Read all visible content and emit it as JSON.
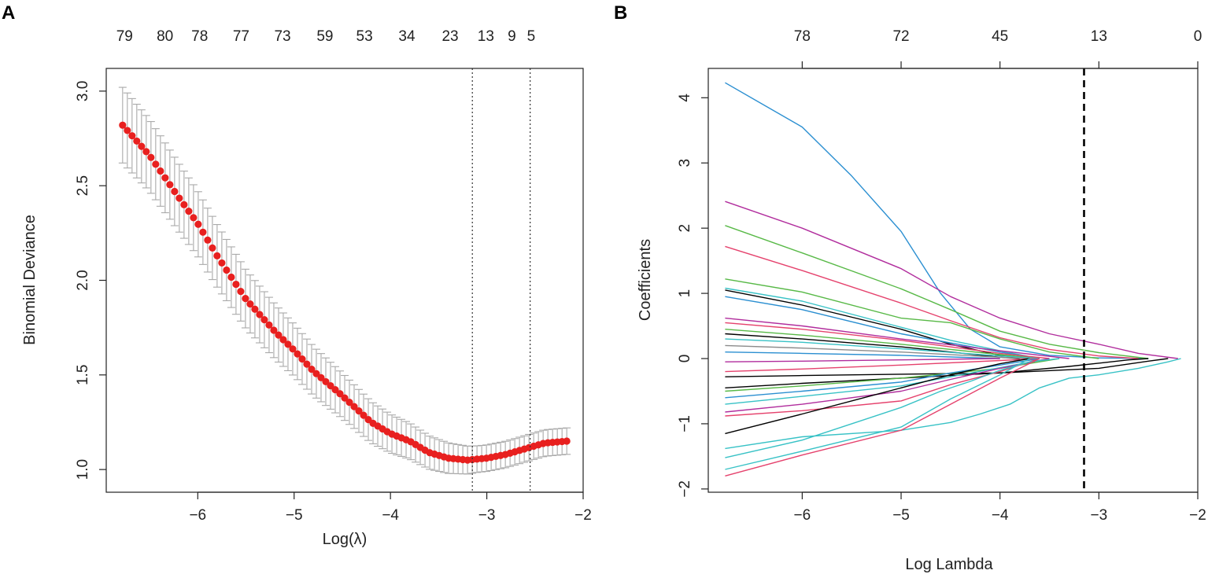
{
  "panels": {
    "left_letter": "A",
    "right_letter": "B"
  },
  "chart_data": [
    {
      "type": "scatter",
      "panel": "A",
      "title": "",
      "xlabel": "Log(λ)",
      "ylabel": "Binomial Deviance",
      "xlim": [
        -6.95,
        -2.0
      ],
      "ylim": [
        0.88,
        3.12
      ],
      "x_ticks": [
        -6,
        -5,
        -4,
        -3,
        -2
      ],
      "x_tick_labels": [
        "−6",
        "−5",
        "−4",
        "−3",
        "−2"
      ],
      "y_ticks": [
        1.0,
        1.5,
        2.0,
        2.5,
        3.0
      ],
      "y_tick_labels": [
        "1.0",
        "1.5",
        "2.0",
        "2.5",
        "3.0"
      ],
      "top_axis_labels": [
        "79",
        "80",
        "78",
        "77",
        "73",
        "59",
        "53",
        "34",
        "23",
        "13",
        "9",
        "5"
      ],
      "top_axis_positions": [
        -6.76,
        -6.34,
        -5.98,
        -5.55,
        -5.12,
        -4.68,
        -4.27,
        -3.83,
        -3.38,
        -3.01,
        -2.74,
        -2.54
      ],
      "vlines": [
        -3.15,
        -2.55
      ],
      "mean_curve_knots": [
        [
          -6.78,
          2.82
        ],
        [
          -6.5,
          2.66
        ],
        [
          -6.2,
          2.44
        ],
        [
          -6.0,
          2.3
        ],
        [
          -5.8,
          2.13
        ],
        [
          -5.5,
          1.9
        ],
        [
          -5.2,
          1.73
        ],
        [
          -5.0,
          1.63
        ],
        [
          -4.8,
          1.52
        ],
        [
          -4.5,
          1.39
        ],
        [
          -4.2,
          1.25
        ],
        [
          -4.0,
          1.19
        ],
        [
          -3.8,
          1.15
        ],
        [
          -3.6,
          1.09
        ],
        [
          -3.4,
          1.06
        ],
        [
          -3.2,
          1.05
        ],
        [
          -3.0,
          1.06
        ],
        [
          -2.8,
          1.08
        ],
        [
          -2.6,
          1.11
        ],
        [
          -2.4,
          1.14
        ],
        [
          -2.17,
          1.15
        ]
      ],
      "error_half_width": [
        0.2,
        0.07
      ],
      "n_points": 95,
      "point_color": "#e8201f",
      "errorbar_color": "#a9a9a9"
    },
    {
      "type": "line",
      "panel": "B",
      "title": "",
      "xlabel": "Log Lambda",
      "ylabel": "Coefficients",
      "xlim": [
        -6.95,
        -2.0
      ],
      "ylim": [
        -2.05,
        4.45
      ],
      "x_ticks": [
        -6,
        -5,
        -4,
        -3,
        -2
      ],
      "x_tick_labels": [
        "−6",
        "−5",
        "−4",
        "−3",
        "−2"
      ],
      "y_ticks": [
        -2,
        -1,
        0,
        1,
        2,
        3,
        4
      ],
      "y_tick_labels": [
        "−2",
        "−1",
        "0",
        "1",
        "2",
        "3",
        "4"
      ],
      "top_axis_labels": [
        "78",
        "72",
        "45",
        "13",
        "0"
      ],
      "top_axis_positions": [
        -6,
        -5,
        -4,
        -3,
        -2
      ],
      "vline_dashed": -3.15,
      "series": [
        {
          "name": "s1",
          "color": "#2b8fd1",
          "points": [
            [
              -6.78,
              4.23
            ],
            [
              -6,
              3.55
            ],
            [
              -5.5,
              2.8
            ],
            [
              -5,
              1.95
            ],
            [
              -4.6,
              1.0
            ],
            [
              -4.3,
              0.45
            ],
            [
              -4.0,
              0.18
            ],
            [
              -3.5,
              0.05
            ],
            [
              -3.0,
              0.01
            ],
            [
              -2.5,
              0.0
            ]
          ]
        },
        {
          "name": "s2",
          "color": "#b12d9d",
          "points": [
            [
              -6.78,
              2.41
            ],
            [
              -6,
              2.0
            ],
            [
              -5,
              1.38
            ],
            [
              -4.5,
              0.95
            ],
            [
              -4,
              0.62
            ],
            [
              -3.5,
              0.38
            ],
            [
              -3,
              0.22
            ],
            [
              -2.6,
              0.08
            ],
            [
              -2.2,
              0.0
            ]
          ]
        },
        {
          "name": "s3",
          "color": "#58b947",
          "points": [
            [
              -6.78,
              2.04
            ],
            [
              -6,
              1.62
            ],
            [
              -5,
              1.07
            ],
            [
              -4.5,
              0.75
            ],
            [
              -4,
              0.42
            ],
            [
              -3.5,
              0.22
            ],
            [
              -3,
              0.09
            ],
            [
              -2.5,
              0.0
            ]
          ]
        },
        {
          "name": "s4",
          "color": "#e5426d",
          "points": [
            [
              -6.78,
              1.72
            ],
            [
              -6,
              1.35
            ],
            [
              -5,
              0.85
            ],
            [
              -4.5,
              0.58
            ],
            [
              -4,
              0.32
            ],
            [
              -3.5,
              0.14
            ],
            [
              -3,
              0.04
            ],
            [
              -2.6,
              0.0
            ]
          ]
        },
        {
          "name": "s5",
          "color": "#58b947",
          "points": [
            [
              -6.78,
              1.22
            ],
            [
              -6,
              1.02
            ],
            [
              -5,
              0.62
            ],
            [
              -4.5,
              0.55
            ],
            [
              -4,
              0.3
            ],
            [
              -3.5,
              0.1
            ],
            [
              -3,
              0.0
            ]
          ]
        },
        {
          "name": "s6",
          "color": "#38c2c6",
          "points": [
            [
              -6.78,
              1.08
            ],
            [
              -6,
              0.88
            ],
            [
              -5,
              0.48
            ],
            [
              -4.5,
              0.28
            ],
            [
              -4,
              0.12
            ],
            [
              -3.6,
              0.0
            ]
          ]
        },
        {
          "name": "s7",
          "color": "#000000",
          "points": [
            [
              -6.78,
              1.05
            ],
            [
              -6,
              0.82
            ],
            [
              -5,
              0.45
            ],
            [
              -4.5,
              0.22
            ],
            [
              -4,
              0.05
            ],
            [
              -3.7,
              0.0
            ]
          ]
        },
        {
          "name": "s8",
          "color": "#2b8fd1",
          "points": [
            [
              -6.78,
              0.95
            ],
            [
              -6,
              0.75
            ],
            [
              -5,
              0.38
            ],
            [
              -4,
              0.1
            ],
            [
              -3.6,
              0.0
            ]
          ]
        },
        {
          "name": "s9",
          "color": "#b12d9d",
          "points": [
            [
              -6.78,
              0.62
            ],
            [
              -6,
              0.5
            ],
            [
              -5,
              0.3
            ],
            [
              -4,
              0.12
            ],
            [
              -3.3,
              0.0
            ]
          ]
        },
        {
          "name": "s10",
          "color": "#e5426d",
          "points": [
            [
              -6.78,
              0.55
            ],
            [
              -6,
              0.45
            ],
            [
              -5,
              0.28
            ],
            [
              -4,
              0.08
            ],
            [
              -3.5,
              0.0
            ]
          ]
        },
        {
          "name": "s11",
          "color": "#58b947",
          "points": [
            [
              -6.78,
              0.45
            ],
            [
              -6,
              0.36
            ],
            [
              -5,
              0.22
            ],
            [
              -4,
              0.06
            ],
            [
              -3.6,
              0.0
            ]
          ]
        },
        {
          "name": "s12",
          "color": "#000000",
          "points": [
            [
              -6.78,
              0.38
            ],
            [
              -6,
              0.3
            ],
            [
              -5,
              0.18
            ],
            [
              -4,
              0.02
            ],
            [
              -3.8,
              0.0
            ]
          ]
        },
        {
          "name": "s13",
          "color": "#38c2c6",
          "points": [
            [
              -6.78,
              0.3
            ],
            [
              -6,
              0.25
            ],
            [
              -5,
              0.15
            ],
            [
              -4,
              0.04
            ],
            [
              -3.6,
              0.0
            ]
          ]
        },
        {
          "name": "s14",
          "color": "#8c8c8c",
          "points": [
            [
              -6.78,
              0.2
            ],
            [
              -6,
              0.16
            ],
            [
              -5,
              0.1
            ],
            [
              -4,
              0.02
            ],
            [
              -3.7,
              0.0
            ]
          ]
        },
        {
          "name": "s15",
          "color": "#2b8fd1",
          "points": [
            [
              -6.78,
              0.1
            ],
            [
              -6,
              0.08
            ],
            [
              -5,
              0.05
            ],
            [
              -4,
              0.0
            ]
          ]
        },
        {
          "name": "s16",
          "color": "#b12d9d",
          "points": [
            [
              -6.78,
              -0.05
            ],
            [
              -6,
              -0.04
            ],
            [
              -5,
              -0.02
            ],
            [
              -4,
              0.0
            ]
          ]
        },
        {
          "name": "s17",
          "color": "#e5426d",
          "points": [
            [
              -6.78,
              -0.2
            ],
            [
              -6,
              -0.16
            ],
            [
              -5,
              -0.1
            ],
            [
              -4,
              -0.03
            ],
            [
              -3.6,
              0.0
            ]
          ]
        },
        {
          "name": "s18",
          "color": "#000000",
          "points": [
            [
              -6.78,
              -0.28
            ],
            [
              -6,
              -0.26
            ],
            [
              -5,
              -0.24
            ],
            [
              -4,
              -0.22
            ],
            [
              -3,
              -0.15
            ],
            [
              -2.5,
              -0.04
            ],
            [
              -2.3,
              0.0
            ]
          ]
        },
        {
          "name": "s19",
          "color": "#000000",
          "points": [
            [
              -6.78,
              -0.45
            ],
            [
              -6,
              -0.38
            ],
            [
              -5,
              -0.3
            ],
            [
              -4,
              -0.22
            ],
            [
              -3.3,
              -0.12
            ],
            [
              -2.7,
              -0.02
            ],
            [
              -2.5,
              0.0
            ]
          ]
        },
        {
          "name": "s20",
          "color": "#58b947",
          "points": [
            [
              -6.78,
              -0.5
            ],
            [
              -6,
              -0.42
            ],
            [
              -5,
              -0.3
            ],
            [
              -4,
              -0.15
            ],
            [
              -3.4,
              0.0
            ]
          ]
        },
        {
          "name": "s21",
          "color": "#2b8fd1",
          "points": [
            [
              -6.78,
              -0.6
            ],
            [
              -6,
              -0.5
            ],
            [
              -5,
              -0.36
            ],
            [
              -4.5,
              -0.22
            ],
            [
              -4,
              -0.1
            ],
            [
              -3.6,
              0.0
            ]
          ]
        },
        {
          "name": "s22",
          "color": "#38c2c6",
          "points": [
            [
              -6.78,
              -0.7
            ],
            [
              -6,
              -0.58
            ],
            [
              -5,
              -0.42
            ],
            [
              -4.5,
              -0.28
            ],
            [
              -4,
              -0.14
            ],
            [
              -3.5,
              0.0
            ]
          ]
        },
        {
          "name": "s23",
          "color": "#b12d9d",
          "points": [
            [
              -6.78,
              -0.82
            ],
            [
              -6,
              -0.7
            ],
            [
              -5,
              -0.5
            ],
            [
              -4.5,
              -0.32
            ],
            [
              -4,
              -0.15
            ],
            [
              -3.5,
              0.0
            ]
          ]
        },
        {
          "name": "s24",
          "color": "#e5426d",
          "points": [
            [
              -6.78,
              -0.88
            ],
            [
              -6,
              -0.8
            ],
            [
              -5,
              -0.65
            ],
            [
              -4.5,
              -0.4
            ],
            [
              -4,
              -0.2
            ],
            [
              -3.6,
              0.0
            ]
          ]
        },
        {
          "name": "s25",
          "color": "#000000",
          "points": [
            [
              -6.78,
              -1.15
            ],
            [
              -6,
              -0.85
            ],
            [
              -5,
              -0.45
            ],
            [
              -4.5,
              -0.25
            ],
            [
              -4,
              -0.08
            ],
            [
              -3.7,
              0.0
            ]
          ]
        },
        {
          "name": "s26",
          "color": "#38c2c6",
          "points": [
            [
              -6.78,
              -1.38
            ],
            [
              -6,
              -1.2
            ],
            [
              -5,
              -1.1
            ],
            [
              -4.5,
              -0.98
            ],
            [
              -4.2,
              -0.85
            ],
            [
              -3.9,
              -0.7
            ],
            [
              -3.6,
              -0.45
            ],
            [
              -3.3,
              -0.3
            ],
            [
              -3.0,
              -0.25
            ],
            [
              -2.6,
              -0.15
            ],
            [
              -2.3,
              -0.05
            ],
            [
              -2.17,
              0.0
            ]
          ]
        },
        {
          "name": "s27",
          "color": "#38c2c6",
          "points": [
            [
              -6.78,
              -1.52
            ],
            [
              -6,
              -1.25
            ],
            [
              -5.4,
              -0.95
            ],
            [
              -5,
              -0.75
            ],
            [
              -4.6,
              -0.5
            ],
            [
              -4.3,
              -0.35
            ],
            [
              -4,
              -0.18
            ],
            [
              -3.7,
              -0.05
            ],
            [
              -3.4,
              0.0
            ]
          ]
        },
        {
          "name": "s28",
          "color": "#38c2c6",
          "points": [
            [
              -6.78,
              -1.7
            ],
            [
              -6,
              -1.42
            ],
            [
              -5,
              -1.05
            ],
            [
              -4.5,
              -0.62
            ],
            [
              -4,
              -0.25
            ],
            [
              -3.7,
              0.0
            ]
          ]
        },
        {
          "name": "s29",
          "color": "#e5426d",
          "points": [
            [
              -6.78,
              -1.8
            ],
            [
              -6,
              -1.48
            ],
            [
              -5,
              -1.1
            ],
            [
              -4.5,
              -0.7
            ],
            [
              -4,
              -0.3
            ],
            [
              -3.6,
              0.0
            ]
          ]
        }
      ]
    }
  ]
}
